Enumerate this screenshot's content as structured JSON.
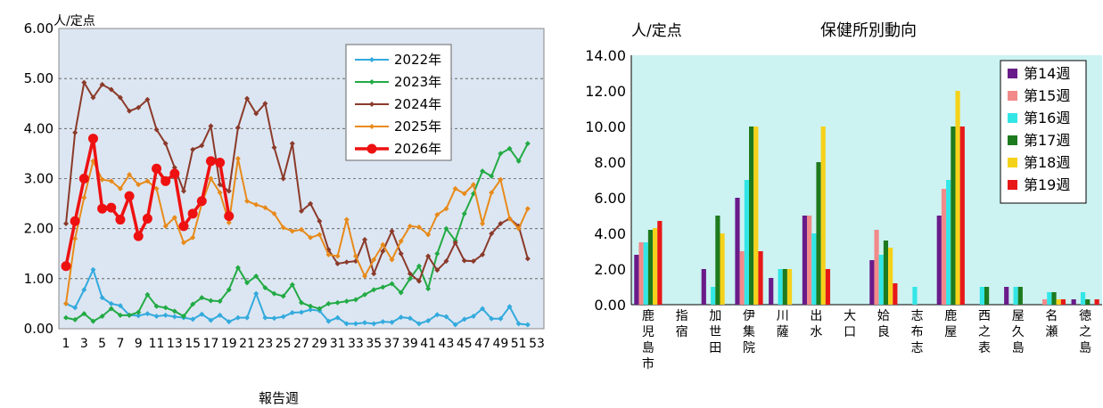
{
  "chart_data": [
    {
      "type": "line",
      "ylabel": "人/定点",
      "xlabel": "報告週",
      "ylim": [
        0,
        6
      ],
      "yticks": [
        "0.00",
        "1.00",
        "2.00",
        "3.00",
        "4.00",
        "5.00",
        "6.00"
      ],
      "xticks": [
        "1",
        "3",
        "5",
        "7",
        "9",
        "11",
        "13",
        "15",
        "17",
        "19",
        "21",
        "23",
        "25",
        "27",
        "29",
        "31",
        "33",
        "35",
        "37",
        "39",
        "41",
        "43",
        "45",
        "47",
        "49",
        "51",
        "53"
      ],
      "grid": true,
      "legend_position": "top-right",
      "colors": {
        "2022年": "#33aadd",
        "2023年": "#22aa44",
        "2024年": "#8b3a2a",
        "2025年": "#e88a1a",
        "2026年": "#ee1111"
      },
      "series": [
        {
          "name": "2022年",
          "x": [
            1,
            2,
            3,
            4,
            5,
            6,
            7,
            8,
            9,
            10,
            11,
            12,
            13,
            14,
            15,
            16,
            17,
            18,
            19,
            20,
            21,
            22,
            23,
            24,
            25,
            26,
            27,
            28,
            29,
            30,
            31,
            32,
            33,
            34,
            35,
            36,
            37,
            38,
            39,
            40,
            41,
            42,
            43,
            44,
            45,
            46,
            47,
            48,
            49,
            50,
            51,
            52
          ],
          "values": [
            0.5,
            0.42,
            0.78,
            1.18,
            0.62,
            0.5,
            0.46,
            0.27,
            0.26,
            0.3,
            0.25,
            0.27,
            0.24,
            0.22,
            0.19,
            0.29,
            0.17,
            0.27,
            0.14,
            0.22,
            0.22,
            0.7,
            0.22,
            0.21,
            0.24,
            0.32,
            0.33,
            0.38,
            0.36,
            0.15,
            0.22,
            0.1,
            0.1,
            0.12,
            0.1,
            0.14,
            0.13,
            0.23,
            0.21,
            0.1,
            0.16,
            0.28,
            0.24,
            0.08,
            0.19,
            0.25,
            0.4,
            0.2,
            0.2,
            0.44,
            0.1,
            0.08
          ]
        },
        {
          "name": "2023年",
          "x": [
            1,
            2,
            3,
            4,
            5,
            6,
            7,
            8,
            9,
            10,
            11,
            12,
            13,
            14,
            15,
            16,
            17,
            18,
            19,
            20,
            21,
            22,
            23,
            24,
            25,
            26,
            27,
            28,
            29,
            30,
            31,
            32,
            33,
            34,
            35,
            36,
            37,
            38,
            39,
            40,
            41,
            42,
            43,
            44,
            45,
            46,
            47,
            48,
            49,
            50,
            51,
            52
          ],
          "values": [
            0.22,
            0.18,
            0.3,
            0.15,
            0.25,
            0.4,
            0.27,
            0.27,
            0.33,
            0.68,
            0.45,
            0.42,
            0.35,
            0.25,
            0.49,
            0.62,
            0.56,
            0.55,
            0.78,
            1.22,
            0.92,
            1.05,
            0.82,
            0.7,
            0.65,
            0.88,
            0.52,
            0.45,
            0.4,
            0.5,
            0.52,
            0.55,
            0.58,
            0.68,
            0.78,
            0.83,
            0.9,
            0.72,
            1.0,
            1.25,
            0.8,
            1.5,
            2.0,
            1.76,
            2.3,
            2.7,
            3.15,
            3.05,
            3.5,
            3.6,
            3.35,
            3.7
          ]
        },
        {
          "name": "2024年",
          "x": [
            1,
            2,
            3,
            4,
            5,
            6,
            7,
            8,
            9,
            10,
            11,
            12,
            13,
            14,
            15,
            16,
            17,
            18,
            19,
            20,
            21,
            22,
            23,
            24,
            25,
            26,
            27,
            28,
            29,
            30,
            31,
            32,
            33,
            34,
            35,
            36,
            37,
            38,
            39,
            40,
            41,
            42,
            43,
            44,
            45,
            46,
            47,
            48,
            49,
            50,
            51,
            52
          ],
          "values": [
            2.1,
            3.92,
            4.92,
            4.62,
            4.88,
            4.78,
            4.62,
            4.35,
            4.42,
            4.58,
            3.98,
            3.7,
            3.22,
            2.75,
            3.58,
            3.66,
            4.05,
            2.88,
            2.75,
            4.02,
            4.6,
            4.3,
            4.5,
            3.62,
            3.0,
            3.7,
            2.35,
            2.5,
            2.15,
            1.58,
            1.3,
            1.33,
            1.35,
            1.78,
            1.1,
            1.55,
            1.95,
            1.5,
            1.1,
            0.95,
            1.45,
            1.17,
            1.35,
            1.72,
            1.36,
            1.35,
            1.48,
            1.9,
            2.1,
            2.2,
            2.05,
            1.4
          ]
        },
        {
          "name": "2025年",
          "x": [
            1,
            2,
            3,
            4,
            5,
            6,
            7,
            8,
            9,
            10,
            11,
            12,
            13,
            14,
            15,
            16,
            17,
            18,
            19,
            20,
            21,
            22,
            23,
            24,
            25,
            26,
            27,
            28,
            29,
            30,
            31,
            32,
            33,
            34,
            35,
            36,
            37,
            38,
            39,
            40,
            41,
            42,
            43,
            44,
            45,
            46,
            47,
            48,
            49,
            50,
            51,
            52
          ],
          "values": [
            0.5,
            1.8,
            2.62,
            3.35,
            2.98,
            2.95,
            2.8,
            3.08,
            2.88,
            2.95,
            2.8,
            2.05,
            2.22,
            1.72,
            1.82,
            2.5,
            3.0,
            2.72,
            2.12,
            3.4,
            2.55,
            2.48,
            2.42,
            2.3,
            2.02,
            1.95,
            1.98,
            1.82,
            1.88,
            1.48,
            1.45,
            2.18,
            1.45,
            1.05,
            1.38,
            1.68,
            1.38,
            1.75,
            2.05,
            2.03,
            1.88,
            2.28,
            2.4,
            2.8,
            2.7,
            2.88,
            2.1,
            2.72,
            2.98,
            2.2,
            2.0,
            2.4
          ]
        },
        {
          "name": "2026年",
          "x": [
            1,
            2,
            3,
            4,
            5,
            6,
            7,
            8,
            9,
            10,
            11,
            12,
            13,
            14,
            15,
            16,
            17,
            18,
            19
          ],
          "values": [
            1.25,
            2.15,
            3.0,
            3.8,
            2.4,
            2.42,
            2.18,
            2.65,
            1.85,
            2.2,
            3.2,
            2.95,
            3.1,
            2.05,
            2.3,
            2.55,
            3.35,
            3.32,
            2.25
          ]
        }
      ]
    },
    {
      "type": "bar",
      "title": "保健所別動向",
      "ylabel": "人/定点",
      "ylim": [
        0,
        14
      ],
      "yticks": [
        "0.00",
        "2.00",
        "4.00",
        "6.00",
        "8.00",
        "10.00",
        "12.00",
        "14.00"
      ],
      "legend_position": "top-right",
      "categories": [
        "鹿児島市",
        "指宿",
        "加世田",
        "伊集院",
        "川薩",
        "出水",
        "大口",
        "姶良",
        "志布志",
        "鹿屋",
        "西之表",
        "屋久島",
        "名瀬",
        "徳之島"
      ],
      "series": [
        {
          "name": "第14週",
          "color": "#6a1b8a",
          "values": [
            2.8,
            0,
            2.0,
            6.0,
            1.5,
            5.0,
            0,
            2.5,
            0,
            5.0,
            0,
            1.0,
            0,
            0.3
          ]
        },
        {
          "name": "第15週",
          "color": "#f28a8a",
          "values": [
            3.5,
            0,
            0,
            3.0,
            0,
            5.0,
            0,
            4.2,
            0,
            6.5,
            0,
            0,
            0.3,
            0
          ]
        },
        {
          "name": "第16週",
          "color": "#33e6e6",
          "values": [
            3.5,
            0,
            1.0,
            7.0,
            2.0,
            4.0,
            0,
            2.8,
            1.0,
            7.0,
            1.0,
            1.0,
            0.7,
            0.7
          ]
        },
        {
          "name": "第17週",
          "color": "#1e7a1e",
          "values": [
            4.2,
            0,
            5.0,
            10.0,
            2.0,
            8.0,
            0,
            3.6,
            0,
            10.0,
            1.0,
            1.0,
            0.7,
            0.3
          ]
        },
        {
          "name": "第18週",
          "color": "#f5d21a",
          "values": [
            4.3,
            0,
            4.0,
            10.0,
            2.0,
            10.0,
            0,
            3.2,
            0,
            12.0,
            0,
            0,
            0.3,
            0
          ]
        },
        {
          "name": "第19週",
          "color": "#e81818",
          "values": [
            4.7,
            0,
            0,
            3.0,
            0,
            2.0,
            0,
            1.2,
            0,
            10.0,
            0,
            0,
            0.3,
            0.3
          ]
        }
      ]
    }
  ]
}
